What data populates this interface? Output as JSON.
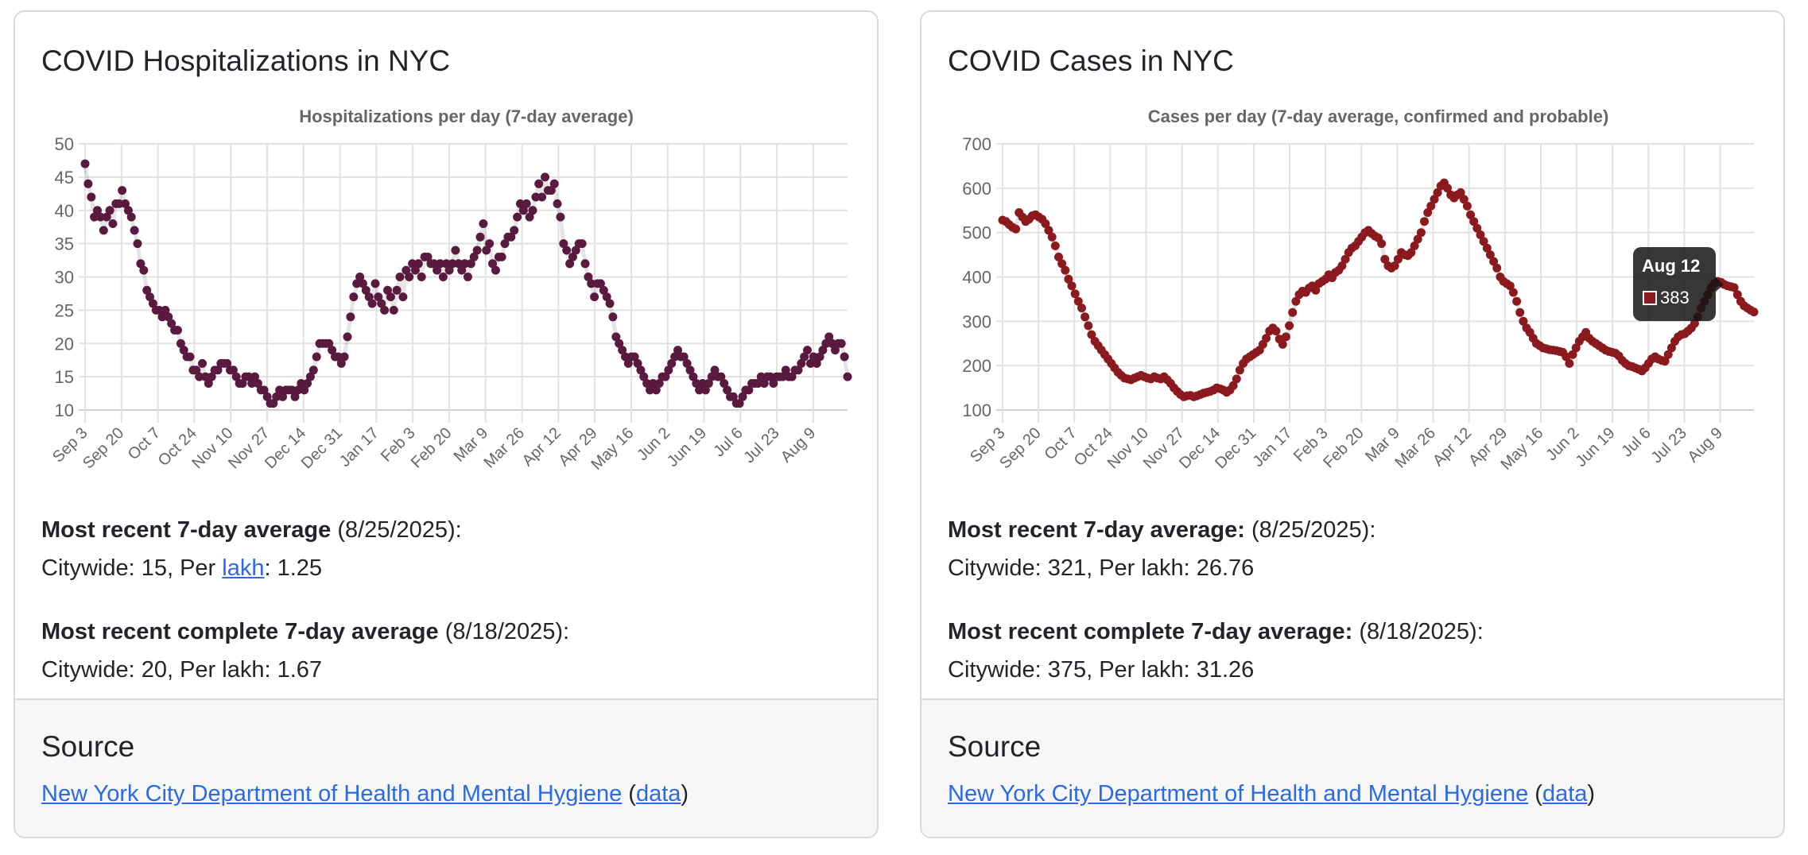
{
  "cards": [
    {
      "title": "COVID Hospitalizations in NYC",
      "recent_label": "Most recent 7-day average",
      "recent_date": " (8/25/2025):",
      "recent_prefix": "Citywide: 15, Per ",
      "recent_link": "lakh",
      "recent_suffix": ": 1.25",
      "complete_label": "Most recent complete 7-day average",
      "complete_date": " (8/18/2025):",
      "complete_values": "Citywide: 20, Per lakh: 1.67",
      "source_heading": "Source",
      "source_link": "New York City Department of Health and Mental Hygiene",
      "open_paren": " (",
      "data_link": "data",
      "close_paren": ")"
    },
    {
      "title": "COVID Cases in NYC",
      "recent_label": "Most recent 7-day average:",
      "recent_date": " (8/25/2025):",
      "recent_values": "Citywide: 321, Per lakh: 26.76",
      "complete_label": "Most recent complete 7-day average:",
      "complete_date": " (8/18/2025):",
      "complete_values": "Citywide: 375, Per lakh: 31.26",
      "source_heading": "Source",
      "source_link": "New York City Department of Health and Mental Hygiene",
      "open_paren": " (",
      "data_link": "data",
      "close_paren": ")"
    }
  ],
  "tooltip": {
    "title": "Aug 12",
    "value": "383",
    "color": "#8b1a1f"
  },
  "chart_data": [
    {
      "type": "scatter",
      "title": "Hospitalizations per day (7-day average)",
      "xlabel": "",
      "ylabel": "",
      "x_unit": "days since Sep 3",
      "xlim": [
        0,
        356
      ],
      "ylim": [
        10,
        50
      ],
      "yticks": [
        10,
        15,
        20,
        25,
        30,
        35,
        40,
        45,
        50
      ],
      "xticks": [
        0,
        17,
        34,
        51,
        68,
        85,
        102,
        119,
        136,
        153,
        170,
        187,
        204,
        221,
        238,
        255,
        272,
        289,
        306,
        323,
        340
      ],
      "xtick_labels": [
        "Sep 3",
        "Sep 20",
        "Oct 7",
        "Oct 24",
        "Nov 10",
        "Nov 27",
        "Dec 14",
        "Dec 31",
        "Jan 17",
        "Feb 3",
        "Feb 20",
        "Mar 9",
        "Mar 26",
        "Apr 12",
        "Apr 29",
        "May 16",
        "Jun 2",
        "Jun 19",
        "Jul 6",
        "Jul 23",
        "Aug 9"
      ],
      "grid": true,
      "color": "#5a1a3f",
      "values": [
        47,
        44,
        42,
        39,
        40,
        39,
        37,
        39,
        40,
        38,
        41,
        41,
        43,
        41,
        40,
        39,
        37,
        35,
        32,
        31,
        28,
        27,
        26,
        25,
        25,
        24,
        25,
        24,
        23,
        22,
        22,
        20,
        19,
        18,
        18,
        16,
        16,
        15,
        17,
        15,
        14,
        15,
        16,
        16,
        17,
        17,
        17,
        16,
        16,
        15,
        14,
        14,
        15,
        15,
        14,
        15,
        14,
        13,
        13,
        12,
        11,
        11,
        12,
        13,
        12,
        13,
        13,
        13,
        12,
        13,
        14,
        13,
        14,
        15,
        16,
        18,
        20,
        20,
        20,
        20,
        19,
        18,
        18,
        17,
        18,
        21,
        24,
        27,
        29,
        30,
        29,
        28,
        27,
        26,
        29,
        27,
        26,
        25,
        28,
        27,
        25,
        28,
        30,
        27,
        31,
        30,
        32,
        31,
        32,
        30,
        33,
        33,
        32,
        32,
        31,
        32,
        30,
        32,
        31,
        32,
        34,
        32,
        31,
        32,
        30,
        32,
        33,
        34,
        36,
        38,
        34,
        35,
        32,
        31,
        33,
        33,
        35,
        36,
        36,
        37,
        39,
        41,
        40,
        41,
        39,
        40,
        42,
        44,
        42,
        45,
        43,
        43,
        44,
        41,
        39,
        35,
        34,
        32,
        33,
        34,
        35,
        35,
        32,
        30,
        29,
        27,
        29,
        29,
        28,
        27,
        26,
        24,
        21,
        20,
        19,
        18,
        17,
        18,
        18,
        17,
        16,
        15,
        14,
        13,
        14,
        13,
        14,
        15,
        15,
        16,
        17,
        18,
        19,
        18,
        18,
        17,
        16,
        15,
        14,
        13,
        14,
        13,
        14,
        15,
        16,
        15,
        15,
        14,
        13,
        12,
        12,
        11,
        11,
        12,
        13,
        13,
        14,
        14,
        14,
        15,
        14,
        15,
        15,
        14,
        15,
        15,
        15,
        16,
        15,
        15,
        16,
        16,
        17,
        18,
        19,
        17,
        18,
        17,
        18,
        19,
        20,
        21,
        20,
        19,
        20,
        20,
        18,
        15
      ]
    },
    {
      "type": "scatter",
      "title": "Cases per day (7-day average, confirmed and probable)",
      "xlabel": "",
      "ylabel": "",
      "x_unit": "days since Sep 3",
      "xlim": [
        0,
        356
      ],
      "ylim": [
        100,
        700
      ],
      "yticks": [
        100,
        200,
        300,
        400,
        500,
        600,
        700
      ],
      "xticks": [
        0,
        17,
        34,
        51,
        68,
        85,
        102,
        119,
        136,
        153,
        170,
        187,
        204,
        221,
        238,
        255,
        272,
        289,
        306,
        323,
        340
      ],
      "xtick_labels": [
        "Sep 3",
        "Sep 20",
        "Oct 7",
        "Oct 24",
        "Nov 10",
        "Nov 27",
        "Dec 14",
        "Dec 31",
        "Jan 17",
        "Feb 3",
        "Feb 20",
        "Mar 9",
        "Mar 26",
        "Apr 12",
        "Apr 29",
        "May 16",
        "Jun 2",
        "Jun 19",
        "Jul 6",
        "Jul 23",
        "Aug 9"
      ],
      "grid": true,
      "color": "#8b1a1f",
      "values": [
        528,
        525,
        518,
        512,
        508,
        545,
        535,
        525,
        530,
        538,
        540,
        535,
        530,
        520,
        505,
        490,
        470,
        445,
        430,
        415,
        395,
        380,
        362,
        345,
        330,
        310,
        290,
        270,
        255,
        245,
        235,
        225,
        215,
        205,
        195,
        185,
        178,
        172,
        170,
        168,
        172,
        175,
        178,
        175,
        172,
        170,
        175,
        172,
        170,
        175,
        168,
        160,
        150,
        142,
        135,
        130,
        132,
        133,
        130,
        132,
        135,
        138,
        140,
        142,
        145,
        150,
        148,
        145,
        140,
        145,
        155,
        170,
        190,
        205,
        215,
        220,
        225,
        230,
        235,
        248,
        262,
        278,
        285,
        278,
        260,
        248,
        265,
        290,
        320,
        345,
        360,
        368,
        365,
        375,
        380,
        370,
        385,
        390,
        395,
        405,
        398,
        410,
        415,
        425,
        440,
        455,
        465,
        470,
        480,
        490,
        500,
        505,
        498,
        492,
        488,
        475,
        440,
        425,
        420,
        425,
        440,
        455,
        450,
        448,
        455,
        470,
        485,
        500,
        525,
        545,
        560,
        575,
        590,
        605,
        612,
        600,
        585,
        578,
        585,
        590,
        575,
        560,
        540,
        525,
        510,
        495,
        480,
        465,
        450,
        435,
        420,
        400,
        390,
        385,
        380,
        365,
        345,
        320,
        300,
        285,
        275,
        262,
        250,
        245,
        240,
        238,
        236,
        235,
        234,
        232,
        230,
        220,
        205,
        225,
        240,
        255,
        265,
        275,
        262,
        255,
        250,
        245,
        240,
        235,
        232,
        230,
        228,
        222,
        212,
        205,
        200,
        198,
        195,
        192,
        188,
        195,
        205,
        215,
        220,
        215,
        212,
        210,
        225,
        240,
        255,
        265,
        270,
        272,
        278,
        285,
        295,
        310,
        330,
        345,
        360,
        375,
        385,
        390,
        388,
        383,
        380,
        378,
        376,
        360,
        345,
        335,
        330,
        325,
        321
      ]
    }
  ]
}
